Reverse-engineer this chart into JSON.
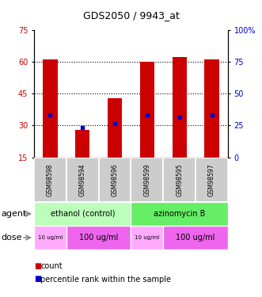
{
  "title": "GDS2050 / 9943_at",
  "samples": [
    "GSM98598",
    "GSM98594",
    "GSM98596",
    "GSM98599",
    "GSM98595",
    "GSM98597"
  ],
  "bar_tops": [
    61,
    28,
    43,
    60,
    62,
    61
  ],
  "bar_bottoms": [
    15,
    15,
    15,
    15,
    15,
    15
  ],
  "percentile_values": [
    35,
    29,
    31,
    35,
    34,
    35
  ],
  "bar_color": "#cc0000",
  "percentile_color": "#0000cc",
  "ylim_left": [
    15,
    75
  ],
  "ylim_right": [
    0,
    100
  ],
  "yticks_left": [
    15,
    30,
    45,
    60,
    75
  ],
  "ytick_labels_left": [
    "15",
    "30",
    "45",
    "60",
    "75"
  ],
  "yticks_right_vals": [
    0,
    25,
    50,
    75,
    100
  ],
  "ytick_labels_right": [
    "0",
    "25",
    "50",
    "75",
    "100%"
  ],
  "grid_vals": [
    30,
    45,
    60
  ],
  "agent_labels": [
    [
      "ethanol (control)",
      0,
      3
    ],
    [
      "azinomycin B",
      3,
      6
    ]
  ],
  "agent_colors": [
    "#bbffbb",
    "#66ee66"
  ],
  "dose_groups": [
    {
      "label": "10 ug/ml",
      "start": 0,
      "end": 1,
      "color": "#ffaaff",
      "small": true
    },
    {
      "label": "100 ug/ml",
      "start": 1,
      "end": 3,
      "color": "#ee66ee",
      "small": false
    },
    {
      "label": "10 ug/ml",
      "start": 3,
      "end": 4,
      "color": "#ffaaff",
      "small": true
    },
    {
      "label": "100 ug/ml",
      "start": 4,
      "end": 6,
      "color": "#ee66ee",
      "small": false
    }
  ],
  "legend_count_color": "#cc0000",
  "legend_pct_color": "#0000cc",
  "left_label_color": "#cc0000",
  "right_label_color": "#0000cc",
  "sample_bg": "#cccccc",
  "bar_width": 0.45
}
